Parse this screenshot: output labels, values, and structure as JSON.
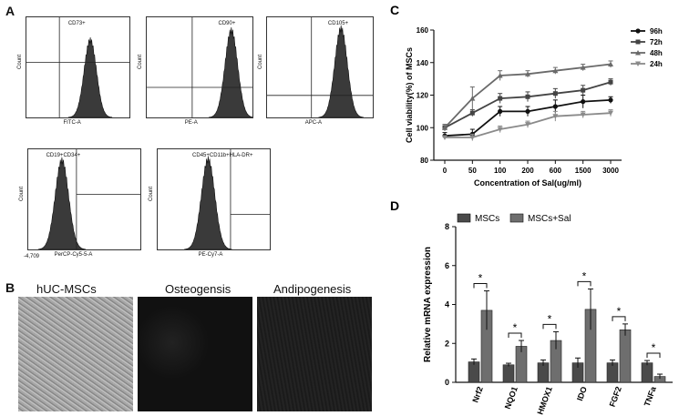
{
  "panel_a": {
    "letter": "A",
    "histograms": [
      {
        "marker": "CD73+",
        "xlabel": "FITC-A",
        "ylabel": "Count"
      },
      {
        "marker": "CD90+",
        "xlabel": "PE-A",
        "ylabel": "Count"
      },
      {
        "marker": "CD105+",
        "xlabel": "APC-A",
        "ylabel": "Count"
      },
      {
        "marker": "CD19+CD34+",
        "xlabel": "PerCP-Cy5-5-A",
        "ylabel": "Count"
      },
      {
        "marker": "CD45+CD11b+HLA-DR+",
        "xlabel": "PE-Cy7-A",
        "ylabel": "Count"
      }
    ],
    "tick_neg": "-4,709"
  },
  "panel_b": {
    "letter": "B",
    "images": [
      {
        "title": "hUC-MSCs"
      },
      {
        "title": "Osteogensis"
      },
      {
        "title": "Andipogenesis"
      }
    ]
  },
  "chart_data": [
    {
      "panel": "C",
      "type": "line",
      "xlabel": "Concentration of Sal(ug/ml)",
      "ylabel": "Cell viability(%) of MSCs",
      "categories": [
        "0",
        "50",
        "100",
        "200",
        "600",
        "1500",
        "3000"
      ],
      "ylim": [
        80,
        160
      ],
      "yticks": [
        80,
        100,
        120,
        140,
        160
      ],
      "legend_position": "top-right",
      "series": [
        {
          "name": "96h",
          "color": "#111111",
          "marker": "circle",
          "values": [
            95,
            96,
            110,
            110,
            113,
            116,
            117
          ],
          "errors": [
            2,
            3,
            3,
            3,
            4,
            4,
            2
          ]
        },
        {
          "name": "72h",
          "color": "#444444",
          "marker": "square",
          "values": [
            100,
            109,
            118,
            119,
            121,
            123,
            128
          ],
          "errors": [
            2,
            2,
            3,
            3,
            3,
            3,
            2
          ]
        },
        {
          "name": "48h",
          "color": "#6a6a6a",
          "marker": "triangle-up",
          "values": [
            100,
            118,
            132,
            133,
            135,
            137,
            139
          ],
          "errors": [
            2,
            7,
            3,
            2,
            2,
            2,
            2
          ]
        },
        {
          "name": "24h",
          "color": "#8a8a8a",
          "marker": "triangle-down",
          "values": [
            94,
            94,
            99,
            102,
            107,
            108,
            109
          ],
          "errors": [
            1,
            2,
            2,
            2,
            3,
            2,
            2
          ]
        }
      ]
    },
    {
      "panel": "D",
      "type": "bar",
      "ylabel": "Relative mRNA expression",
      "categories": [
        "Nrf2",
        "NQO1",
        "HMOX1",
        "IDO",
        "FGF2",
        "TNFa"
      ],
      "ylim": [
        0,
        8
      ],
      "yticks": [
        0,
        2,
        4,
        6,
        8
      ],
      "legend_position": "top",
      "series": [
        {
          "name": "MSCs",
          "color": "#4a4a4a",
          "values": [
            1.05,
            0.9,
            1.0,
            1.0,
            1.0,
            1.0
          ],
          "errors": [
            0.15,
            0.08,
            0.15,
            0.25,
            0.15,
            0.12
          ]
        },
        {
          "name": "MSCs+Sal",
          "color": "#6e6e6e",
          "values": [
            3.7,
            1.85,
            2.15,
            3.75,
            2.7,
            0.3
          ],
          "errors": [
            1.0,
            0.3,
            0.45,
            1.05,
            0.3,
            0.12
          ]
        }
      ],
      "significance": [
        "*",
        "*",
        "*",
        "*",
        "*",
        "*"
      ]
    }
  ]
}
